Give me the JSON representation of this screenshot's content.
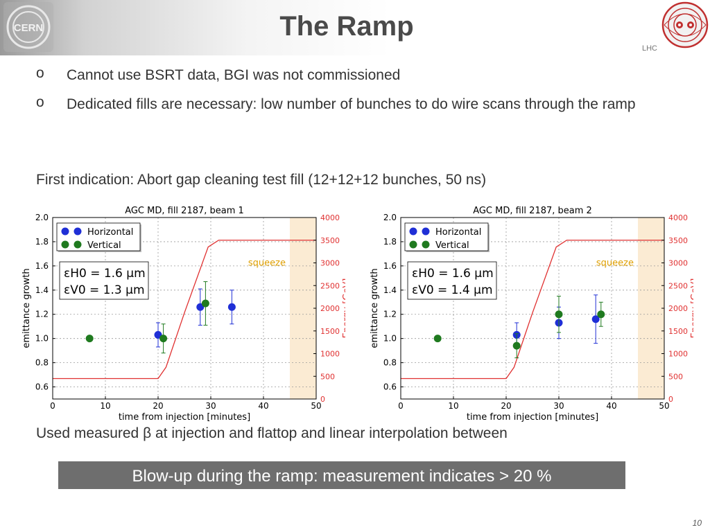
{
  "header": {
    "title": "The Ramp",
    "lhc_label": "LHC",
    "cern_logo_text": "CERN"
  },
  "bullets": [
    {
      "marker": "o",
      "text": "Cannot use BSRT data, BGI was not commissioned"
    },
    {
      "marker": "o",
      "text": "Dedicated fills are necessary: low number of bunches to do wire scans through the ramp"
    }
  ],
  "first_indication": "First indication: Abort gap cleaning test fill (12+12+12 bunches, 50 ns)",
  "interp_note": "Used measured β at injection and flattop and linear interpolation between",
  "banner": "Blow-up during the ramp: measurement indicates > 20 %",
  "page_number": "10",
  "colors": {
    "horizontal": "#1f2fd6",
    "vertical": "#1f7a1f",
    "energy": "#e03030",
    "squeeze_band": "#fbebd3",
    "squeeze_text": "#e0a000"
  },
  "chart_data": [
    {
      "type": "scatter",
      "title": "AGC MD, fill 2187, beam 1",
      "xlabel": "time from injection [minutes]",
      "ylabel": "emittance growth",
      "y2label": "Energy [GeV]",
      "xlim": [
        0,
        50
      ],
      "ylim": [
        0.5,
        2.0
      ],
      "y2lim": [
        0,
        4000
      ],
      "xticks": [
        "0",
        "10",
        "20",
        "30",
        "40",
        "50"
      ],
      "yticks": [
        "0.6",
        "0.8",
        "1.0",
        "1.2",
        "1.4",
        "1.6",
        "1.8",
        "2.0"
      ],
      "y2ticks": [
        "0",
        "500",
        "1000",
        "1500",
        "2000",
        "2500",
        "3000",
        "3500",
        "4000"
      ],
      "legend": [
        "Horizontal",
        "Vertical"
      ],
      "legend_position": "top-left",
      "annotation": [
        "εH0 = 1.6 μm",
        "εV0 = 1.3 μm"
      ],
      "squeeze_label": "squeeze",
      "squeeze_band": [
        45,
        50
      ],
      "energy_curve": [
        [
          0,
          450
        ],
        [
          20,
          450
        ],
        [
          21.5,
          700
        ],
        [
          25,
          1900
        ],
        [
          29.5,
          3350
        ],
        [
          31.5,
          3500
        ],
        [
          50,
          3500
        ]
      ],
      "series": [
        {
          "name": "Horizontal",
          "points": [
            [
              20,
              1.03,
              0.1
            ],
            [
              28,
              1.26,
              0.15
            ],
            [
              34,
              1.26,
              0.14
            ]
          ]
        },
        {
          "name": "Vertical",
          "points": [
            [
              7,
              1.0,
              0
            ],
            [
              21,
              1.0,
              0.12
            ],
            [
              29,
              1.29,
              0.18
            ]
          ]
        }
      ]
    },
    {
      "type": "scatter",
      "title": "AGC MD, fill 2187, beam 2",
      "xlabel": "time from injection [minutes]",
      "ylabel": "emittance growth",
      "y2label": "Energy [GeV]",
      "xlim": [
        0,
        50
      ],
      "ylim": [
        0.5,
        2.0
      ],
      "y2lim": [
        0,
        4000
      ],
      "xticks": [
        "0",
        "10",
        "20",
        "30",
        "40",
        "50"
      ],
      "yticks": [
        "0.6",
        "0.8",
        "1.0",
        "1.2",
        "1.4",
        "1.6",
        "1.8",
        "2.0"
      ],
      "y2ticks": [
        "0",
        "500",
        "1000",
        "1500",
        "2000",
        "2500",
        "3000",
        "3500",
        "4000"
      ],
      "legend": [
        "Horizontal",
        "Vertical"
      ],
      "legend_position": "top-left",
      "annotation": [
        "εH0 = 1.6 μm",
        "εV0 = 1.4 μm"
      ],
      "squeeze_label": "squeeze",
      "squeeze_band": [
        45,
        50
      ],
      "energy_curve": [
        [
          0,
          450
        ],
        [
          20,
          450
        ],
        [
          21.5,
          700
        ],
        [
          25,
          1900
        ],
        [
          29.5,
          3350
        ],
        [
          31.5,
          3500
        ],
        [
          50,
          3500
        ]
      ],
      "series": [
        {
          "name": "Horizontal",
          "points": [
            [
              22,
              1.03,
              0.1
            ],
            [
              30,
              1.13,
              0.13
            ],
            [
              37,
              1.16,
              0.2
            ]
          ]
        },
        {
          "name": "Vertical",
          "points": [
            [
              7,
              1.0,
              0
            ],
            [
              22,
              0.94,
              0.1
            ],
            [
              30,
              1.2,
              0.15
            ],
            [
              38,
              1.2,
              0.1
            ]
          ]
        }
      ]
    }
  ]
}
